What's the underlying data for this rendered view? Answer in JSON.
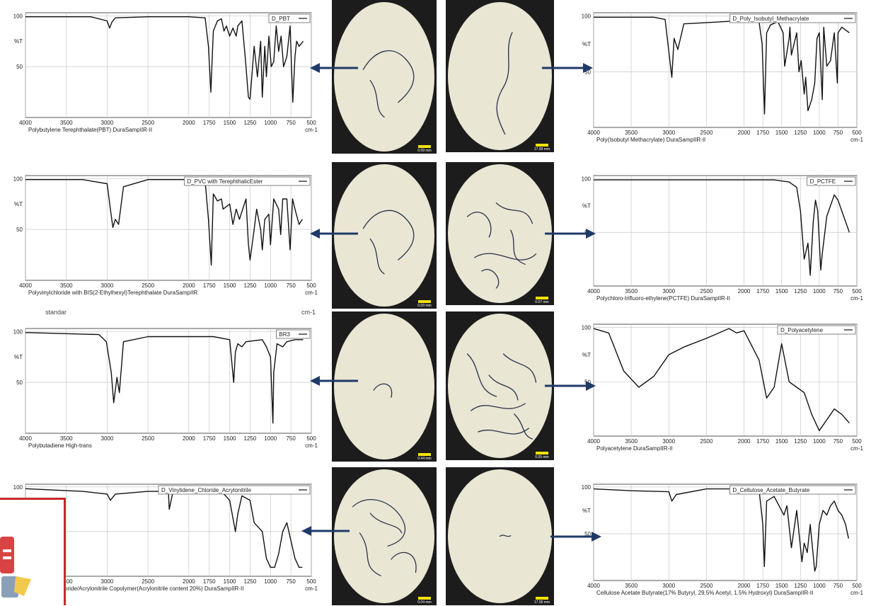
{
  "colors": {
    "spectrum_line": "#111111",
    "arrow": "#1f3a68",
    "scope_bg": "#1c1c1c",
    "field": "#e9e6d4",
    "fiber": "#2a3148",
    "scalebar": "#f2e300",
    "icon_border": "#c92a2a"
  },
  "stray_labels": {
    "standard": "standar",
    "cm_unit": "cm-1"
  },
  "images": [
    {
      "name": "micrograph-1",
      "scale_label": "0.09 mm"
    },
    {
      "name": "micrograph-2",
      "scale_label": "17.99 mm"
    },
    {
      "name": "micrograph-3",
      "scale_label": "0.09 mm"
    },
    {
      "name": "micrograph-4",
      "scale_label": "0.07 mm"
    },
    {
      "name": "micrograph-5",
      "scale_label": "0.44 mm"
    },
    {
      "name": "micrograph-6",
      "scale_label": "0.05 mm"
    },
    {
      "name": "micrograph-7",
      "scale_label": "0.04 mm"
    },
    {
      "name": "micrograph-8",
      "scale_label": "17.99 mm"
    }
  ],
  "app_icon": "document-app-icon",
  "chart_data": [
    {
      "type": "line",
      "legend": "D_PBT",
      "caption": "Polybutylene Terephthalate(PBT)  DuraSampIIR-II",
      "ylabel": "%T",
      "xunit": "cm-1",
      "xlim": [
        4000,
        500
      ],
      "ylim": [
        0,
        103
      ],
      "yticks": [
        100,
        50
      ],
      "xticks": [
        4000,
        3500,
        3000,
        2500,
        2000,
        1750,
        1500,
        1250,
        1000,
        750,
        500
      ],
      "x": [
        4000,
        3800,
        3200,
        3000,
        2970,
        2940,
        2900,
        2500,
        2000,
        1800,
        1760,
        1730,
        1700,
        1650,
        1600,
        1570,
        1540,
        1500,
        1460,
        1420,
        1400,
        1350,
        1310,
        1270,
        1250,
        1200,
        1160,
        1120,
        1100,
        1070,
        1050,
        1020,
        990,
        960,
        930,
        900,
        870,
        840,
        800,
        760,
        727,
        700,
        680,
        650,
        600
      ],
      "y": [
        99,
        99,
        99,
        95,
        88,
        94,
        98,
        99,
        99,
        98,
        70,
        25,
        85,
        95,
        97,
        85,
        90,
        80,
        88,
        80,
        90,
        95,
        60,
        20,
        18,
        70,
        40,
        75,
        20,
        70,
        40,
        80,
        50,
        55,
        90,
        65,
        80,
        50,
        60,
        90,
        15,
        60,
        75,
        70,
        75
      ]
    },
    {
      "type": "line",
      "legend": "D_Poly_Isobutyl_Methacrylate",
      "caption": "Poly(Isobutyl Methacrylate)  DuraSampIIR-II",
      "ylabel": "%T",
      "xunit": "cm-1",
      "xlim": [
        4000,
        500
      ],
      "ylim": [
        0,
        103
      ],
      "yticks": [
        100,
        50
      ],
      "xticks": [
        4000,
        3500,
        3000,
        2500,
        2000,
        1750,
        1500,
        1250,
        1000,
        750,
        500
      ],
      "x": [
        4000,
        3200,
        3050,
        2960,
        2930,
        2880,
        2800,
        2000,
        1800,
        1760,
        1728,
        1700,
        1650,
        1550,
        1480,
        1460,
        1400,
        1390,
        1370,
        1300,
        1270,
        1240,
        1200,
        1180,
        1150,
        1100,
        1060,
        1030,
        1000,
        960,
        940,
        900,
        850,
        800,
        760,
        750,
        700,
        600
      ],
      "y": [
        99,
        99,
        97,
        45,
        80,
        70,
        93,
        96,
        95,
        75,
        12,
        85,
        92,
        95,
        85,
        55,
        80,
        90,
        65,
        85,
        50,
        60,
        30,
        45,
        15,
        25,
        40,
        80,
        85,
        25,
        90,
        55,
        60,
        85,
        40,
        85,
        90,
        85
      ]
    },
    {
      "type": "line",
      "legend": "D_PVC with TerephthalicEster",
      "caption": "Polyvinylchloride with BIS(2-Ethylhexyl)Terephthalate  DuraSampIIR",
      "ylabel": "%T",
      "xunit": "cm-1",
      "xlim": [
        4000,
        500
      ],
      "ylim": [
        0,
        103
      ],
      "yticks": [
        100,
        50
      ],
      "xticks": [
        4000,
        3500,
        3000,
        2500,
        2000,
        1750,
        1500,
        1250,
        1000,
        750,
        500
      ],
      "x": [
        4000,
        3300,
        3000,
        2960,
        2930,
        2900,
        2860,
        2800,
        2500,
        2000,
        1800,
        1760,
        1725,
        1700,
        1650,
        1600,
        1580,
        1500,
        1460,
        1420,
        1380,
        1300,
        1270,
        1250,
        1200,
        1170,
        1120,
        1100,
        1070,
        1020,
        1000,
        960,
        900,
        875,
        850,
        800,
        760,
        730,
        700,
        650,
        610
      ],
      "y": [
        99,
        99,
        95,
        70,
        52,
        60,
        55,
        92,
        99,
        99,
        98,
        60,
        15,
        85,
        78,
        80,
        70,
        75,
        55,
        70,
        60,
        80,
        35,
        20,
        50,
        70,
        50,
        30,
        60,
        65,
        35,
        80,
        70,
        45,
        80,
        80,
        30,
        80,
        70,
        55,
        60
      ]
    },
    {
      "type": "line",
      "legend": "D_PCTFE",
      "caption": "Polychloro-trifluoro-ethylene(PCTFE)  DuraSampIIR-II",
      "ylabel": "%T",
      "xunit": "cm-1",
      "xlim": [
        4000,
        500
      ],
      "ylim": [
        0,
        103
      ],
      "yticks": [
        100,
        50
      ],
      "xticks": [
        4000,
        3500,
        3000,
        2500,
        2000,
        1750,
        1500,
        1250,
        1000,
        750,
        500
      ],
      "x": [
        4000,
        2500,
        1600,
        1400,
        1300,
        1250,
        1200,
        1150,
        1120,
        1080,
        1050,
        1020,
        980,
        960,
        900,
        800,
        750,
        700,
        650,
        600
      ],
      "y": [
        99,
        99,
        99,
        97,
        92,
        70,
        25,
        40,
        10,
        60,
        80,
        70,
        15,
        30,
        65,
        85,
        80,
        70,
        60,
        50
      ]
    },
    {
      "type": "line",
      "legend": "BR3",
      "caption": "Polybutadiene High-trans",
      "ylabel": "%T",
      "xunit": "cm-1",
      "xlim": [
        4000,
        500
      ],
      "ylim": [
        0,
        103
      ],
      "yticks": [
        100,
        50
      ],
      "xticks": [
        4000,
        3500,
        3000,
        2500,
        2000,
        1750,
        1500,
        1250,
        1000,
        750,
        500
      ],
      "x": [
        4000,
        3100,
        3010,
        2950,
        2920,
        2880,
        2850,
        2800,
        2500,
        1700,
        1500,
        1450,
        1430,
        1400,
        1350,
        1300,
        1100,
        1050,
        1000,
        970,
        960,
        920,
        850,
        800,
        700,
        600
      ],
      "y": [
        99,
        97,
        90,
        60,
        30,
        55,
        40,
        90,
        95,
        95,
        92,
        50,
        80,
        88,
        85,
        90,
        92,
        85,
        75,
        10,
        60,
        88,
        85,
        90,
        92,
        92
      ]
    },
    {
      "type": "line",
      "legend": "D_Polyacetylene",
      "caption": "Polyacetylene  DuraSampIIR-II",
      "ylabel": "%T",
      "xunit": "cm-1",
      "xlim": [
        4000,
        500
      ],
      "ylim": [
        0,
        103
      ],
      "yticks": [
        100,
        50
      ],
      "xticks": [
        4000,
        3500,
        3000,
        2500,
        2000,
        1750,
        1500,
        1250,
        1000,
        750,
        500
      ],
      "x": [
        4000,
        3800,
        3600,
        3400,
        3200,
        3000,
        2800,
        2500,
        2200,
        2100,
        2000,
        1800,
        1700,
        1600,
        1500,
        1400,
        1300,
        1200,
        1100,
        1000,
        900,
        800,
        700,
        600
      ],
      "y": [
        99,
        95,
        60,
        45,
        55,
        75,
        82,
        90,
        99,
        95,
        97,
        70,
        35,
        45,
        85,
        50,
        45,
        40,
        20,
        5,
        15,
        25,
        20,
        12
      ]
    },
    {
      "type": "line",
      "legend": "D_Vinylidene_Chloride_Acrylonitrile",
      "caption": "Vinylidene Chloride/Acrylonitrile Copolymer(Acrylonitrile content 20%)  DuraSampIIR-II",
      "ylabel": "",
      "xunit": "cm-1",
      "xlim": [
        4000,
        500
      ],
      "ylim": [
        0,
        103
      ],
      "yticks": [
        100,
        50
      ],
      "xticks": [
        4000,
        3500,
        3000,
        2500,
        2000,
        1750,
        1500,
        1250,
        1000,
        750,
        500
      ],
      "x": [
        4000,
        3300,
        3000,
        2960,
        2900,
        2500,
        2250,
        2240,
        2200,
        2100,
        2000,
        1800,
        1600,
        1500,
        1430,
        1400,
        1350,
        1250,
        1200,
        1100,
        1050,
        1000,
        950,
        900,
        850,
        800,
        750,
        700,
        650,
        610
      ],
      "y": [
        98,
        95,
        92,
        85,
        92,
        95,
        95,
        75,
        92,
        95,
        96,
        96,
        95,
        85,
        50,
        70,
        90,
        85,
        60,
        50,
        20,
        10,
        10,
        25,
        50,
        60,
        40,
        20,
        10,
        10
      ]
    },
    {
      "type": "line",
      "legend": "D_Cellulose_Acetate_Butyrate",
      "caption": "Cellulose Acetate Butyrate(17% Butyryl, 29.5% Acetyl, 1.5% Hydroxyl)  DuraSampIIR-II",
      "ylabel": "%T",
      "xunit": "cm-1",
      "xlim": [
        4000,
        500
      ],
      "ylim": [
        0,
        103
      ],
      "yticks": [
        100,
        50
      ],
      "xticks": [
        4000,
        3500,
        3000,
        2500,
        2000,
        1750,
        1500,
        1250,
        1000,
        750,
        500
      ],
      "x": [
        4000,
        3500,
        3000,
        2960,
        2900,
        2500,
        2000,
        1800,
        1750,
        1730,
        1700,
        1600,
        1470,
        1430,
        1370,
        1300,
        1230,
        1200,
        1160,
        1120,
        1060,
        1040,
        1000,
        950,
        900,
        850,
        800,
        750,
        700,
        650,
        610
      ],
      "y": [
        98,
        96,
        95,
        85,
        92,
        98,
        98,
        97,
        60,
        15,
        85,
        90,
        70,
        80,
        35,
        75,
        20,
        40,
        30,
        60,
        10,
        15,
        60,
        75,
        70,
        80,
        85,
        75,
        70,
        60,
        45
      ]
    }
  ]
}
